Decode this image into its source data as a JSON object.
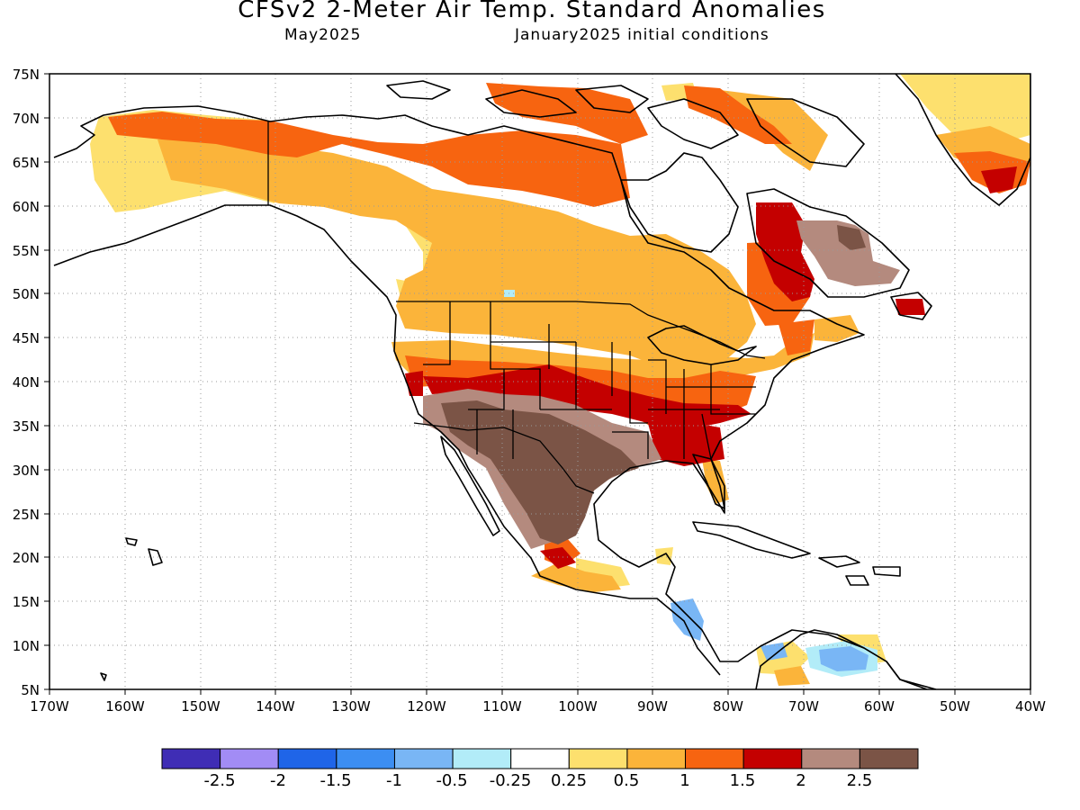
{
  "header": {
    "title": "CFSv2 2-Meter Air Temp. Standard Anomalies",
    "valid_month": "May2025",
    "initial_conditions": "January2025 initial conditions"
  },
  "map": {
    "projection": "lat-lon",
    "lon_range": [
      -170,
      -40
    ],
    "lat_range": [
      5,
      75
    ],
    "lat_labels": [
      "5N",
      "10N",
      "15N",
      "20N",
      "25N",
      "30N",
      "35N",
      "40N",
      "45N",
      "50N",
      "55N",
      "60N",
      "65N",
      "70N",
      "75N"
    ],
    "lon_labels": [
      "170W",
      "160W",
      "150W",
      "140W",
      "130W",
      "120W",
      "110W",
      "100W",
      "90W",
      "80W",
      "70W",
      "60W",
      "50W",
      "40W"
    ],
    "grid": "dotted"
  },
  "colorbar": {
    "colors": [
      "#3f2db5",
      "#a28cf5",
      "#1f65e8",
      "#3c8ef2",
      "#79b6f5",
      "#b2ecf8",
      "#ffffff",
      "#fde06e",
      "#fbb43a",
      "#f76410",
      "#c40000",
      "#b48a7e",
      "#7b5446"
    ],
    "labels": [
      "-2.5",
      "-2",
      "-1.5",
      "-1",
      "-0.5",
      "-0.25",
      "0.25",
      "0.5",
      "1",
      "1.5",
      "2",
      "2.5"
    ]
  }
}
